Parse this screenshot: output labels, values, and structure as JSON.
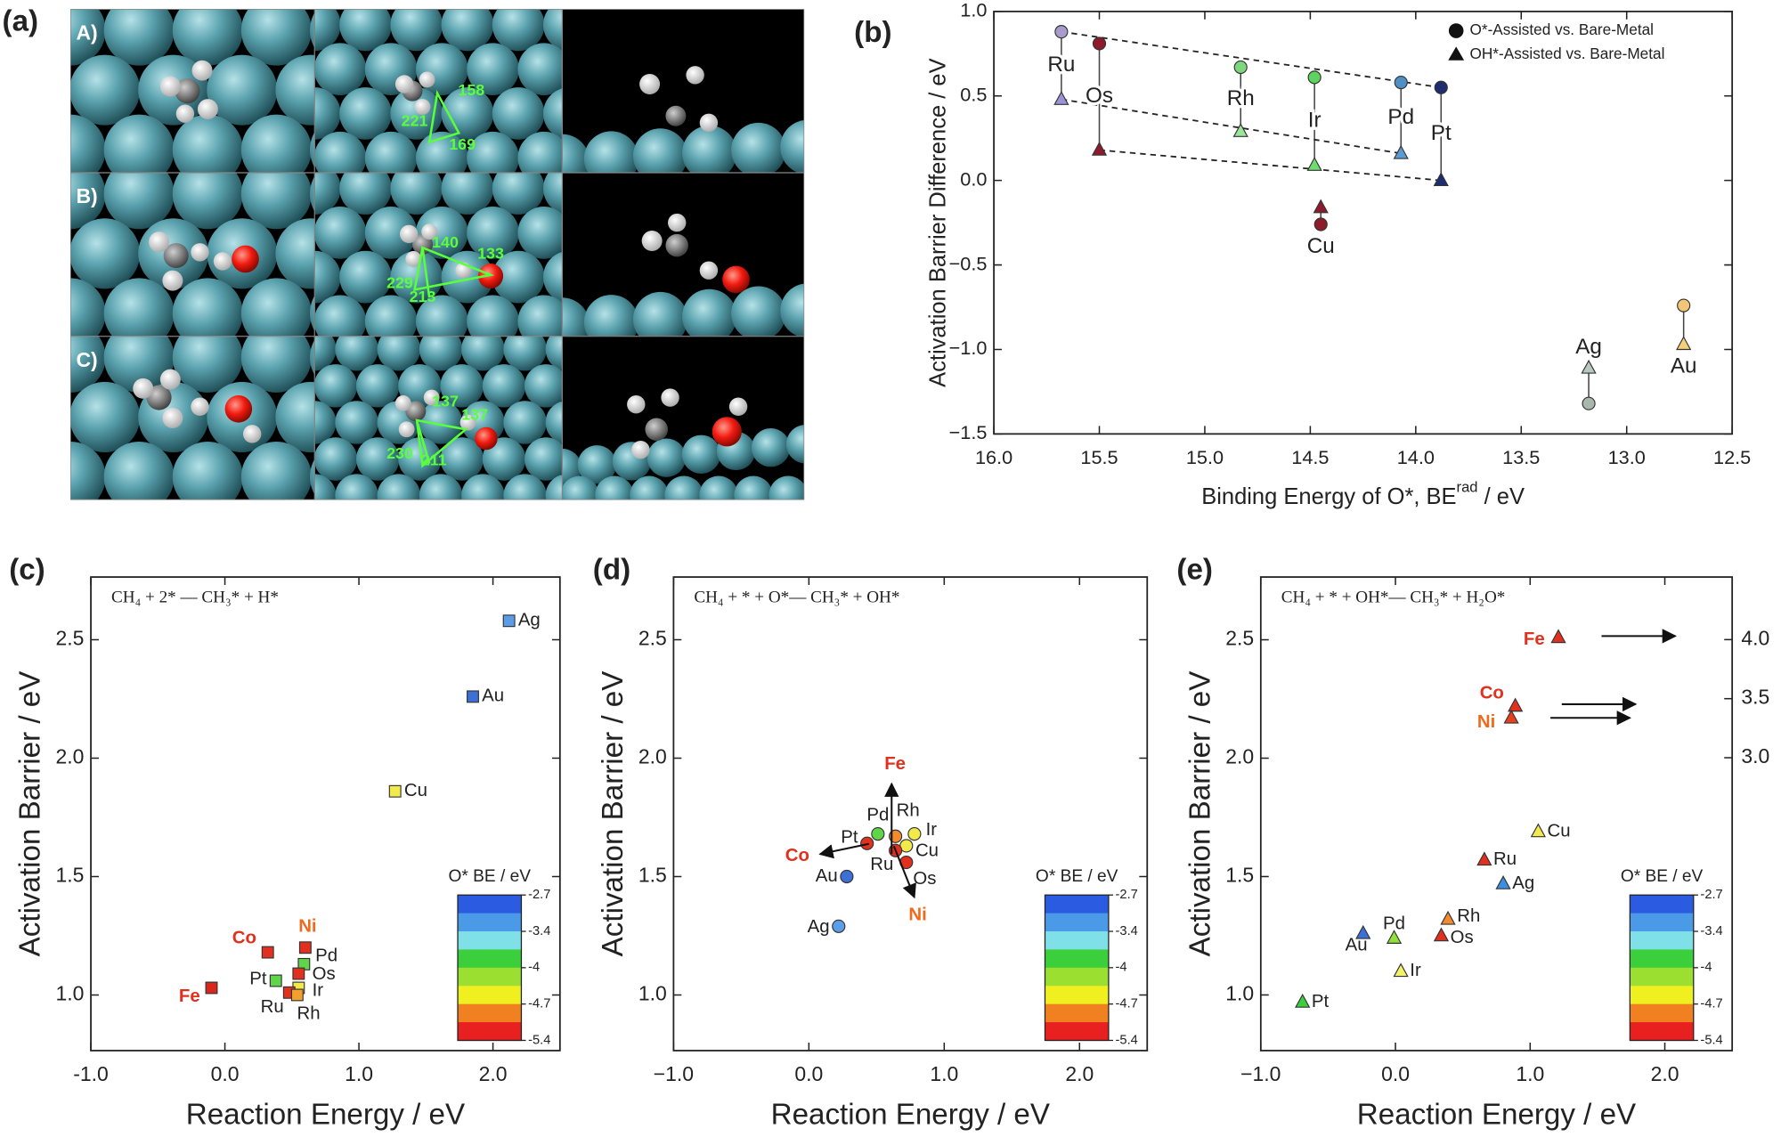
{
  "panel_a": {
    "label": "(a)",
    "rows": [
      {
        "label": "A)",
        "angles": [
          158,
          221,
          169
        ]
      },
      {
        "label": "B)",
        "angles": [
          140,
          133,
          229,
          213
        ]
      },
      {
        "label": "C)",
        "angles": [
          137,
          137,
          230,
          211
        ]
      }
    ]
  },
  "chart_data": [
    {
      "type": "scatter",
      "panel": "(b)",
      "ylabel": "Activation Barrier Difference / eV",
      "xlabel": {
        "text": "Binding Energy of O*, BE",
        "sup": "rad",
        "suffix": " / eV"
      },
      "xlim": [
        16.0,
        12.5
      ],
      "ylim": [
        -1.5,
        1.0
      ],
      "xticks": [
        {
          "value": 16.0,
          "label": "16.0"
        },
        {
          "value": 15.5,
          "label": "15.5"
        },
        {
          "value": 15.0,
          "label": "15.0"
        },
        {
          "value": 14.5,
          "label": "14.5"
        },
        {
          "value": 14.0,
          "label": "14.0"
        },
        {
          "value": 13.5,
          "label": "13.5"
        },
        {
          "value": 13.0,
          "label": "13.0"
        },
        {
          "value": 12.5,
          "label": "12.5"
        }
      ],
      "yticks": [
        {
          "value": 1.0,
          "label": "1.0"
        },
        0.5,
        {
          "value": 0.0,
          "label": "0.0"
        },
        {
          "value": -0.5,
          "label": "−0.5"
        },
        {
          "value": -1.0,
          "label": "−1.0"
        },
        {
          "value": -1.5,
          "label": "−1.5"
        }
      ],
      "legend": "upper right",
      "labels": [
        "Ru",
        "Os",
        "Rh",
        "Ir",
        "Pd",
        "Pt",
        "Cu",
        "Ag",
        "Au"
      ],
      "x": [
        15.68,
        15.5,
        14.83,
        14.48,
        14.07,
        13.88,
        14.45,
        13.18,
        12.73
      ],
      "series": [
        {
          "name": "O*-Assisted vs. Bare-Metal",
          "marker": "circle",
          "values": [
            0.88,
            0.81,
            0.67,
            0.61,
            0.58,
            0.55,
            -0.26,
            -1.32,
            -0.74
          ],
          "colors": [
            "#a99ccc",
            "#8e1b2c",
            "#7fd67f",
            "#5fd35f",
            "#4f8fc4",
            "#1e2d6e",
            "#8e1b2c",
            "#a8b8ac",
            "#f2c577"
          ]
        },
        {
          "name": "OH*-Assisted vs. Bare-Metal",
          "marker": "triangle",
          "values": [
            0.48,
            0.18,
            0.29,
            0.09,
            0.16,
            0.0,
            -0.16,
            -1.11,
            -0.97
          ],
          "colors": [
            "#9b93d6",
            "#8e1b2c",
            "#9be69b",
            "#6fdc6f",
            "#5a9bd0",
            "#1e2d6e",
            "#8e1b2c",
            "#b8c8c0",
            "#f5d07a"
          ]
        }
      ]
    },
    {
      "type": "scatter",
      "panel": "(c)",
      "equation": "CH₄ + 2* — CH₃* + H*",
      "ylabel": "Activation Barrier / eV",
      "xlabel": "Reaction Energy / eV",
      "xlim": [
        -1.0,
        2.5
      ],
      "ylim": [
        0.765,
        2.765
      ],
      "xticks": [
        {
          "value": -1.0,
          "label": "-1.0"
        },
        {
          "value": 0.0,
          "label": "0.0"
        },
        {
          "value": 1.0,
          "label": "1.0"
        },
        {
          "value": 2.0,
          "label": "2.0"
        }
      ],
      "yticks": [
        {
          "value": 1.0,
          "label": "1.0"
        },
        1.5,
        {
          "value": 2.0,
          "label": "2.0"
        },
        2.5
      ],
      "labels": [
        "Ag",
        "Au",
        "Cu",
        "Co",
        "Ni",
        "Pd",
        "Os",
        "Ir",
        "Pt",
        "Ru",
        "Rh",
        "Fe"
      ],
      "label_colors": [
        "#222222",
        "#222222",
        "#222222",
        "#e2301f",
        "#f06a1e",
        "#222222",
        "#222222",
        "#222222",
        "#222222",
        "#222222",
        "#222222",
        "#e2301f"
      ],
      "series": [
        {
          "marker": "square",
          "x": [
            2.12,
            1.85,
            1.27,
            0.32,
            0.6,
            0.59,
            0.55,
            0.55,
            0.38,
            0.48,
            0.54,
            -0.1
          ],
          "values": [
            2.58,
            2.26,
            1.86,
            1.18,
            1.2,
            1.13,
            1.09,
            1.03,
            1.06,
            1.01,
            1.0,
            1.03
          ],
          "colors": [
            "#5b9de6",
            "#3d6fd6",
            "#f2ea4a",
            "#e2301f",
            "#e2301f",
            "#5fd64a",
            "#e2301f",
            "#f2ea4a",
            "#5fd64a",
            "#e2301f",
            "#f2a12e",
            "#d8261c"
          ]
        }
      ],
      "colorbar": {
        "title": "O* BE / eV",
        "ticks": [
          -2.7,
          -3.4,
          -4.0,
          -4.7,
          -5.4
        ],
        "colors": [
          "#2a5be0",
          "#4a9ae8",
          "#7fe0e8",
          "#3ccf3c",
          "#9be030",
          "#f0f020",
          "#f08020",
          "#e82020"
        ]
      }
    },
    {
      "type": "scatter",
      "panel": "(d)",
      "equation": "CH₄ + * + O*— CH₃* + OH*",
      "ylabel": "Activation Barrier / eV",
      "xlabel": "Reaction Energy / eV",
      "xlim": [
        -1.0,
        2.5
      ],
      "ylim": [
        0.765,
        2.765
      ],
      "xticks": [
        {
          "value": -1.0,
          "label": "−1.0"
        },
        {
          "value": 0.0,
          "label": "0.0"
        },
        {
          "value": 1.0,
          "label": "1.0"
        },
        {
          "value": 2.0,
          "label": "2.0"
        }
      ],
      "yticks": [
        {
          "value": 1.0,
          "label": "1.0"
        },
        1.5,
        {
          "value": 2.0,
          "label": "2.0"
        },
        2.5
      ],
      "labels": [
        "Pt",
        "Pd",
        "Rh",
        "Ir",
        "Cu",
        "Ru",
        "Os",
        "Au",
        "Ag"
      ],
      "label_colors": [
        "#222222",
        "#222222",
        "#222222",
        "#222222",
        "#222222",
        "#222222",
        "#222222",
        "#222222",
        "#222222"
      ],
      "series": [
        {
          "marker": "circle",
          "x": [
            0.43,
            0.51,
            0.64,
            0.78,
            0.72,
            0.64,
            0.72,
            0.28,
            0.22
          ],
          "values": [
            1.64,
            1.68,
            1.67,
            1.68,
            1.63,
            1.61,
            1.56,
            1.5,
            1.29
          ],
          "colors": [
            "#e2301f",
            "#5fd64a",
            "#f28a2e",
            "#f2ea4a",
            "#f2ea4a",
            "#e2301f",
            "#e2301f",
            "#3d6fd6",
            "#5b9de6"
          ]
        }
      ],
      "annotations": [
        {
          "text": "Fe",
          "color": "#e2301f"
        },
        {
          "text": "Co",
          "color": "#e2301f"
        },
        {
          "text": "Ni",
          "color": "#f06a1e"
        }
      ],
      "colorbar": {
        "title": "O* BE / eV",
        "ticks": [
          -2.7,
          -3.4,
          -4.0,
          -4.7,
          -5.4
        ],
        "colors": [
          "#2a5be0",
          "#4a9ae8",
          "#7fe0e8",
          "#3ccf3c",
          "#9be030",
          "#f0f020",
          "#f08020",
          "#e82020"
        ]
      }
    },
    {
      "type": "scatter",
      "panel": "(e)",
      "equation": "CH₄ + * + OH*— CH₃* + H₂O*",
      "ylabel": "Activation Barrier / eV",
      "xlabel": "Reaction Energy / eV",
      "xlim": [
        -1.0,
        2.5
      ],
      "ylim": [
        0.765,
        2.765
      ],
      "y2lim": [
        0.52,
        4.53
      ],
      "xticks": [
        {
          "value": -1.0,
          "label": "−1.0"
        },
        {
          "value": 0.0,
          "label": "0.0"
        },
        {
          "value": 1.0,
          "label": "1.0"
        },
        {
          "value": 2.0,
          "label": "2.0"
        }
      ],
      "yticks": [
        {
          "value": 1.0,
          "label": "1.0"
        },
        1.5,
        {
          "value": 2.0,
          "label": "2.0"
        },
        2.5
      ],
      "y2ticks": [
        {
          "value": 3.0,
          "label": "3.0"
        },
        3.5,
        {
          "value": 4.0,
          "label": "4.0"
        }
      ],
      "labels": [
        "Fe",
        "Co",
        "Ni",
        "Cu",
        "Ru",
        "Ag",
        "Rh",
        "Os",
        "Pd",
        "Au",
        "Ir",
        "Pt"
      ],
      "label_colors": [
        "#e2301f",
        "#e2301f",
        "#f06a1e",
        "#222222",
        "#222222",
        "#222222",
        "#222222",
        "#222222",
        "#222222",
        "#222222",
        "#222222",
        "#222222"
      ],
      "series": [
        {
          "marker": "triangle",
          "x": [
            1.21,
            0.89,
            0.86,
            1.06,
            0.66,
            0.8,
            0.39,
            0.34,
            -0.01,
            -0.24,
            0.04,
            -0.69
          ],
          "values": [
            2.51,
            2.22,
            2.17,
            1.69,
            1.57,
            1.47,
            1.32,
            1.25,
            1.24,
            1.26,
            1.1,
            0.97
          ],
          "colors": [
            "#e2301f",
            "#e2301f",
            "#e8401f",
            "#f2ea4a",
            "#e2301f",
            "#3d8fe0",
            "#f28a2e",
            "#e2301f",
            "#8fe03a",
            "#3d6fd6",
            "#f2f26a",
            "#3ccf3c"
          ]
        }
      ],
      "colorbar": {
        "title": "O* BE / eV",
        "ticks": [
          -2.7,
          -3.4,
          -4.0,
          -4.7,
          -5.4
        ],
        "colors": [
          "#2a5be0",
          "#4a9ae8",
          "#7fe0e8",
          "#3ccf3c",
          "#9be030",
          "#f0f020",
          "#f08020",
          "#e82020"
        ]
      }
    }
  ]
}
